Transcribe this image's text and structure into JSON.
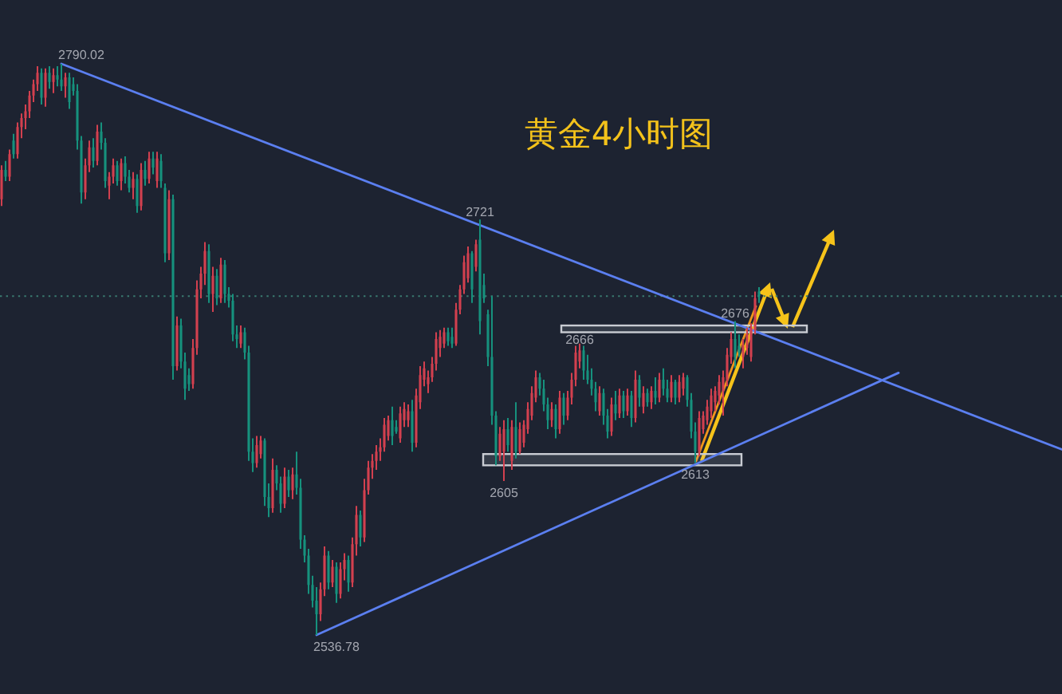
{
  "chart_data": {
    "type": "candlestick",
    "title": "黄金4小时图",
    "categories": [
      null,
      null,
      null,
      null,
      null,
      null,
      null,
      null,
      null,
      null,
      null,
      null,
      null,
      null,
      null,
      null,
      null,
      null,
      null,
      null,
      null,
      null,
      null,
      null,
      null,
      null,
      null,
      null,
      null,
      null,
      null,
      null,
      null,
      null,
      null,
      null,
      null,
      null,
      null,
      null,
      null,
      null,
      null,
      null,
      null,
      null,
      null,
      null,
      null,
      null,
      null,
      null,
      null,
      null,
      null,
      null,
      null,
      null,
      null,
      null,
      null,
      null,
      null,
      null,
      null,
      null,
      null,
      null,
      null,
      null,
      null,
      null,
      null,
      null,
      null,
      null,
      null,
      null,
      null,
      null,
      null,
      null,
      null,
      null,
      null,
      null,
      null,
      null,
      null,
      null,
      null,
      null,
      null,
      null,
      null,
      null,
      null,
      null,
      null,
      null,
      null,
      null,
      null,
      null,
      null,
      null,
      null,
      null,
      null,
      null,
      null,
      null,
      null,
      null,
      null,
      null,
      null,
      null,
      null,
      null,
      null,
      null,
      null,
      null,
      null,
      null,
      null,
      null,
      null,
      null,
      null,
      null,
      null,
      null,
      null,
      null,
      null,
      null,
      null,
      null,
      null,
      null,
      null,
      null,
      null,
      null,
      null,
      null,
      null,
      null,
      null,
      null,
      null,
      null,
      null,
      null,
      null,
      null,
      null,
      null,
      null,
      null,
      null,
      null,
      null,
      null,
      null,
      null,
      null,
      null,
      null,
      null,
      null,
      null,
      null,
      null,
      null,
      null,
      null,
      null,
      null,
      null,
      null,
      null,
      null,
      null,
      null,
      null,
      null,
      null,
      null,
      null,
      null,
      null,
      null,
      null,
      null,
      null,
      null,
      null,
      null,
      null,
      null,
      null,
      null,
      null,
      null,
      null,
      null,
      null,
      null,
      null,
      null,
      null,
      null,
      null,
      null,
      null,
      null,
      null,
      null,
      null,
      null,
      null,
      null,
      null,
      null,
      null,
      null,
      null,
      null,
      null,
      null,
      null,
      null,
      null,
      null,
      null,
      null,
      null,
      null,
      null,
      null,
      null,
      null,
      null,
      null,
      null,
      null,
      null,
      null,
      null,
      null,
      null,
      null,
      null,
      null,
      null,
      null,
      null,
      null,
      null,
      null,
      null,
      null,
      null,
      null
    ],
    "ohlc": [
      [
        2730,
        2745,
        2727,
        2743
      ],
      [
        2743,
        2747,
        2738,
        2740
      ],
      [
        2740,
        2752,
        2738,
        2750
      ],
      [
        2756,
        2759,
        2748,
        2750
      ],
      [
        2750,
        2764,
        2748,
        2762
      ],
      [
        2762,
        2768,
        2757,
        2766
      ],
      [
        2766,
        2772,
        2761,
        2769
      ],
      [
        2769,
        2778,
        2766,
        2776
      ],
      [
        2776,
        2783,
        2773,
        2781
      ],
      [
        2781,
        2789,
        2778,
        2786
      ],
      [
        2786,
        2788,
        2772,
        2775
      ],
      [
        2775,
        2788,
        2771,
        2786
      ],
      [
        2786,
        2789,
        2779,
        2782
      ],
      [
        2782,
        2788,
        2777,
        2785
      ],
      [
        2785,
        2789,
        2780,
        2783
      ],
      [
        2783,
        2790.02,
        2778,
        2780
      ],
      [
        2780,
        2786,
        2775,
        2784
      ],
      [
        2784,
        2786,
        2770,
        2773
      ],
      [
        2781,
        2784,
        2776,
        2778
      ],
      [
        2778,
        2781,
        2752,
        2756
      ],
      [
        2756,
        2758,
        2728,
        2733
      ],
      [
        2733,
        2748,
        2730,
        2745
      ],
      [
        2745,
        2756,
        2742,
        2753
      ],
      [
        2753,
        2757,
        2744,
        2747
      ],
      [
        2747,
        2763,
        2745,
        2760
      ],
      [
        2760,
        2764,
        2752,
        2755
      ],
      [
        2755,
        2757,
        2735,
        2738
      ],
      [
        2736,
        2742,
        2730,
        2740
      ],
      [
        2740,
        2748,
        2737,
        2745
      ],
      [
        2745,
        2747,
        2736,
        2738
      ],
      [
        2738,
        2748,
        2734,
        2746
      ],
      [
        2746,
        2749,
        2737,
        2740
      ],
      [
        2740,
        2743,
        2733,
        2735
      ],
      [
        2735,
        2742,
        2730,
        2739
      ],
      [
        2739,
        2741,
        2724,
        2727
      ],
      [
        2727,
        2746,
        2725,
        2743
      ],
      [
        2743,
        2747,
        2736,
        2739
      ],
      [
        2739,
        2751,
        2737,
        2748
      ],
      [
        2748,
        2751,
        2741,
        2744
      ],
      [
        2738,
        2751,
        2735,
        2748
      ],
      [
        2747,
        2750,
        2735,
        2738
      ],
      [
        2735,
        2737,
        2702,
        2706
      ],
      [
        2706,
        2734,
        2703,
        2730
      ],
      [
        2730,
        2732,
        2650,
        2656
      ],
      [
        2656,
        2678,
        2654,
        2674
      ],
      [
        2674,
        2677,
        2655,
        2658
      ],
      [
        2658,
        2662,
        2641,
        2646
      ],
      [
        2652,
        2655,
        2645,
        2648
      ],
      [
        2648,
        2668,
        2646,
        2664
      ],
      [
        2664,
        2694,
        2661,
        2690
      ],
      [
        2690,
        2700,
        2686,
        2697
      ],
      [
        2697,
        2711,
        2692,
        2707
      ],
      [
        2707,
        2710,
        2684,
        2688
      ],
      [
        2688,
        2700,
        2680,
        2696
      ],
      [
        2696,
        2699,
        2683,
        2686
      ],
      [
        2686,
        2704,
        2684,
        2701
      ],
      [
        2701,
        2703,
        2684,
        2688
      ],
      [
        2688,
        2691,
        2682,
        2685
      ],
      [
        2685,
        2688,
        2667,
        2670
      ],
      [
        2670,
        2674,
        2664,
        2668
      ],
      [
        2666,
        2674,
        2664,
        2671
      ],
      [
        2671,
        2673,
        2659,
        2662
      ],
      [
        2662,
        2665,
        2614,
        2618
      ],
      [
        2618,
        2624,
        2609,
        2613
      ],
      [
        2613,
        2625,
        2611,
        2621
      ],
      [
        2617,
        2625,
        2615,
        2623
      ],
      [
        2623,
        2624,
        2594,
        2598
      ],
      [
        2598,
        2604,
        2589,
        2593
      ],
      [
        2593,
        2615,
        2591,
        2610
      ],
      [
        2610,
        2612,
        2601,
        2604
      ],
      [
        2604,
        2607,
        2591,
        2595
      ],
      [
        2595,
        2611,
        2593,
        2607
      ],
      [
        2607,
        2610,
        2598,
        2601
      ],
      [
        2601,
        2611,
        2597,
        2608
      ],
      [
        2608,
        2618,
        2599,
        2602
      ],
      [
        2602,
        2606,
        2575,
        2579
      ],
      [
        2579,
        2581,
        2569,
        2572
      ],
      [
        2572,
        2575,
        2555,
        2559
      ],
      [
        2559,
        2563,
        2549,
        2552
      ],
      [
        2552,
        2558,
        2536.78,
        2546
      ],
      [
        2546,
        2560,
        2543,
        2557
      ],
      [
        2557,
        2576,
        2554,
        2572
      ],
      [
        2572,
        2574,
        2557,
        2560
      ],
      [
        2560,
        2570,
        2558,
        2567
      ],
      [
        2567,
        2569,
        2551,
        2555
      ],
      [
        2555,
        2569,
        2553,
        2566
      ],
      [
        2566,
        2573,
        2561,
        2570
      ],
      [
        2570,
        2572,
        2556,
        2560
      ],
      [
        2560,
        2580,
        2558,
        2577
      ],
      [
        2577,
        2594,
        2572,
        2590
      ],
      [
        2590,
        2592,
        2576,
        2580
      ],
      [
        2580,
        2606,
        2578,
        2601
      ],
      [
        2601,
        2614,
        2599,
        2611
      ],
      [
        2611,
        2617,
        2606,
        2614
      ],
      [
        2614,
        2621,
        2610,
        2618
      ],
      [
        2618,
        2624,
        2614,
        2620
      ],
      [
        2620,
        2633,
        2618,
        2630
      ],
      [
        2625,
        2634,
        2623,
        2632
      ],
      [
        2632,
        2638,
        2621,
        2625
      ],
      [
        2629,
        2632,
        2626,
        2627
      ],
      [
        2624,
        2638,
        2622,
        2635
      ],
      [
        2632,
        2640,
        2629,
        2637
      ],
      [
        2632,
        2639,
        2629,
        2636
      ],
      [
        2636,
        2641,
        2618,
        2622
      ],
      [
        2622,
        2646,
        2620,
        2643
      ],
      [
        2640,
        2656,
        2637,
        2652
      ],
      [
        2650,
        2658,
        2647,
        2655
      ],
      [
        2648,
        2654,
        2644,
        2651
      ],
      [
        2651,
        2660,
        2649,
        2657
      ],
      [
        2657,
        2671,
        2654,
        2668
      ],
      [
        2664,
        2672,
        2660,
        2669
      ],
      [
        2666,
        2673,
        2664,
        2671
      ],
      [
        2671,
        2673,
        2665,
        2667
      ],
      [
        2669,
        2673,
        2664,
        2666
      ],
      [
        2666,
        2684,
        2665,
        2681
      ],
      [
        2681,
        2692,
        2679,
        2690
      ],
      [
        2690,
        2705,
        2688,
        2702
      ],
      [
        2695,
        2709,
        2693,
        2706
      ],
      [
        2706,
        2707,
        2684,
        2690
      ],
      [
        2700,
        2712,
        2698,
        2710
      ],
      [
        2712,
        2721,
        2670,
        2676
      ],
      [
        2692,
        2697,
        2684,
        2686
      ],
      [
        2679,
        2681,
        2656,
        2660
      ],
      [
        2660,
        2687,
        2630,
        2634
      ],
      [
        2634,
        2636,
        2612,
        2616
      ],
      [
        2616,
        2629,
        2614,
        2626
      ],
      [
        2618,
        2632,
        2605,
        2628
      ],
      [
        2628,
        2633,
        2618,
        2621
      ],
      [
        2614,
        2632,
        2610,
        2629
      ],
      [
        2629,
        2640,
        2615,
        2618
      ],
      [
        2618,
        2631,
        2617,
        2628
      ],
      [
        2622,
        2632,
        2620,
        2630
      ],
      [
        2628,
        2640,
        2626,
        2637
      ],
      [
        2634,
        2647,
        2632,
        2644
      ],
      [
        2642,
        2654,
        2640,
        2651
      ],
      [
        2651,
        2653,
        2643,
        2646
      ],
      [
        2646,
        2650,
        2636,
        2639
      ],
      [
        2639,
        2642,
        2628,
        2632
      ],
      [
        2632,
        2640,
        2629,
        2637
      ],
      [
        2637,
        2639,
        2624,
        2628
      ],
      [
        2628,
        2645,
        2626,
        2642
      ],
      [
        2642,
        2644,
        2630,
        2634
      ],
      [
        2634,
        2645,
        2632,
        2642
      ],
      [
        2642,
        2653,
        2639,
        2650
      ],
      [
        2650,
        2665,
        2647,
        2662
      ],
      [
        2658,
        2666,
        2655,
        2663
      ],
      [
        2663,
        2665,
        2650,
        2654
      ],
      [
        2654,
        2661,
        2648,
        2650
      ],
      [
        2650,
        2655,
        2643,
        2646
      ],
      [
        2646,
        2649,
        2636,
        2640
      ],
      [
        2636,
        2647,
        2634,
        2644
      ],
      [
        2644,
        2646,
        2630,
        2634
      ],
      [
        2634,
        2637,
        2624,
        2627
      ],
      [
        2627,
        2642,
        2625,
        2639
      ],
      [
        2639,
        2645,
        2632,
        2635
      ],
      [
        2635,
        2646,
        2633,
        2643
      ],
      [
        2643,
        2645,
        2633,
        2636
      ],
      [
        2636,
        2646,
        2634,
        2643
      ],
      [
        2643,
        2645,
        2629,
        2633
      ],
      [
        2633,
        2654,
        2631,
        2650
      ],
      [
        2650,
        2652,
        2638,
        2642
      ],
      [
        2638,
        2647,
        2635,
        2644
      ],
      [
        2644,
        2646,
        2638,
        2640
      ],
      [
        2640,
        2647,
        2637,
        2645
      ],
      [
        2645,
        2651,
        2639,
        2642
      ],
      [
        2642,
        2653,
        2640,
        2650
      ],
      [
        2650,
        2655,
        2643,
        2646
      ],
      [
        2646,
        2650,
        2640,
        2642
      ],
      [
        2642,
        2652,
        2640,
        2649
      ],
      [
        2649,
        2650,
        2639,
        2642
      ],
      [
        2642,
        2652,
        2640,
        2649
      ],
      [
        2646,
        2653,
        2643,
        2651
      ],
      [
        2651,
        2652,
        2638,
        2641
      ],
      [
        2641,
        2644,
        2624,
        2627
      ],
      [
        2627,
        2631,
        2613,
        2618
      ],
      [
        2618,
        2636,
        2616,
        2633
      ],
      [
        2628,
        2636,
        2626,
        2634
      ],
      [
        2632,
        2641,
        2630,
        2638
      ],
      [
        2636,
        2646,
        2633,
        2643
      ],
      [
        2640,
        2647,
        2636,
        2645
      ],
      [
        2643,
        2652,
        2639,
        2649
      ],
      [
        2645,
        2654,
        2634,
        2651
      ],
      [
        2650,
        2664,
        2647,
        2661
      ],
      [
        2660,
        2671,
        2657,
        2668
      ],
      [
        2668,
        2676,
        2655,
        2660
      ],
      [
        2665,
        2670,
        2660,
        2662
      ],
      [
        2660,
        2668,
        2655,
        2665
      ],
      [
        2664,
        2673,
        2661,
        2670
      ],
      [
        2660,
        2675,
        2658,
        2673
      ],
      [
        2672,
        2689,
        2670,
        2686
      ],
      [
        2689,
        2691,
        2684,
        2687
      ],
      null,
      null,
      null,
      null,
      null,
      null,
      null,
      null,
      null,
      null,
      null,
      null,
      null,
      null,
      null,
      null,
      null,
      null,
      null,
      null,
      null,
      null,
      null,
      null,
      null,
      null,
      null,
      null,
      null,
      null,
      null,
      null,
      null,
      null,
      null,
      null,
      null,
      null,
      null,
      null,
      null,
      null,
      null,
      null,
      null,
      null,
      null,
      null,
      null,
      null,
      null,
      null,
      null,
      null,
      null,
      null,
      null,
      null,
      null,
      null,
      null,
      null,
      null,
      null,
      null,
      null,
      null,
      null,
      null,
      null,
      null,
      null,
      null,
      null,
      null,
      null
    ],
    "colors": [
      "#d2404f",
      "#16917d",
      "#d2404f",
      "#16917d",
      "#d2404f",
      "#d2404f",
      "#d2404f",
      "#d2404f",
      "#d2404f",
      "#d2404f",
      "#16917d",
      "#d2404f",
      "#16917d",
      "#d2404f",
      "#16917d",
      "#16917d",
      "#d2404f",
      "#16917d",
      "#16917d",
      "#16917d",
      "#16917d",
      "#d2404f",
      "#d2404f",
      "#16917d",
      "#d2404f",
      "#16917d",
      "#16917d",
      "#d2404f",
      "#d2404f",
      "#16917d",
      "#d2404f",
      "#16917d",
      "#16917d",
      "#d2404f",
      "#16917d",
      "#d2404f",
      "#16917d",
      "#d2404f",
      "#16917d",
      "#d2404f",
      "#16917d",
      "#16917d",
      "#d2404f",
      "#16917d",
      "#d2404f",
      "#16917d",
      "#16917d",
      "#16917d",
      "#d2404f",
      "#d2404f",
      "#d2404f",
      "#d2404f",
      "#16917d",
      "#d2404f",
      "#16917d",
      "#d2404f",
      "#16917d",
      "#16917d",
      "#16917d",
      "#16917d",
      "#d2404f",
      "#16917d",
      "#16917d",
      "#16917d",
      "#d2404f",
      "#d2404f",
      "#16917d",
      "#16917d",
      "#d2404f",
      "#16917d",
      "#16917d",
      "#d2404f",
      "#16917d",
      "#d2404f",
      "#16917d",
      "#16917d",
      "#16917d",
      "#16917d",
      "#16917d",
      "#16917d",
      "#d2404f",
      "#d2404f",
      "#16917d",
      "#d2404f",
      "#16917d",
      "#d2404f",
      "#d2404f",
      "#16917d",
      "#d2404f",
      "#d2404f",
      "#16917d",
      "#d2404f",
      "#d2404f",
      "#d2404f",
      "#d2404f",
      "#d2404f",
      "#d2404f",
      "#d2404f",
      "#16917d",
      "#16917d",
      "#d2404f",
      "#d2404f",
      "#d2404f",
      "#16917d",
      "#d2404f",
      "#d2404f",
      "#d2404f",
      "#d2404f",
      "#d2404f",
      "#d2404f",
      "#d2404f",
      "#d2404f",
      "#16917d",
      "#16917d",
      "#d2404f",
      "#d2404f",
      "#d2404f",
      "#d2404f",
      "#16917d",
      "#d2404f",
      "#16917d",
      "#16917d",
      "#16917d",
      "#16917d",
      "#16917d",
      "#d2404f",
      "#d2404f",
      "#16917d",
      "#d2404f",
      "#16917d",
      "#d2404f",
      "#d2404f",
      "#d2404f",
      "#d2404f",
      "#d2404f",
      "#16917d",
      "#16917d",
      "#16917d",
      "#d2404f",
      "#16917d",
      "#d2404f",
      "#16917d",
      "#d2404f",
      "#d2404f",
      "#d2404f",
      "#d2404f",
      "#16917d",
      "#16917d",
      "#16917d",
      "#16917d",
      "#d2404f",
      "#16917d",
      "#16917d",
      "#d2404f",
      "#16917d",
      "#d2404f",
      "#16917d",
      "#d2404f",
      "#16917d",
      "#d2404f",
      "#16917d",
      "#d2404f",
      "#16917d",
      "#d2404f",
      "#16917d",
      "#d2404f",
      "#16917d",
      "#16917d",
      "#d2404f",
      "#16917d",
      "#d2404f",
      "#d2404f",
      "#16917d",
      "#16917d",
      "#16917d",
      "#d2404f",
      "#d2404f",
      "#d2404f",
      "#d2404f",
      "#d2404f",
      "#d2404f",
      "#d2404f",
      "#d2404f",
      "#d2404f",
      "#16917d",
      "#16917d",
      "#d2404f",
      "#d2404f",
      "#d2404f",
      "#d2404f",
      "#16917d",
      null,
      null,
      null,
      null,
      null,
      null,
      null,
      null,
      null,
      null,
      null,
      null,
      null,
      null,
      null,
      null,
      null,
      null,
      null,
      null,
      null,
      null,
      null,
      null,
      null,
      null,
      null,
      null,
      null,
      null,
      null,
      null,
      null,
      null,
      null,
      null,
      null,
      null,
      null,
      null,
      null,
      null,
      null,
      null,
      null,
      null,
      null,
      null,
      null,
      null,
      null,
      null,
      null,
      null,
      null,
      null,
      null,
      null,
      null,
      null,
      null,
      null,
      null,
      null,
      null,
      null,
      null,
      null,
      null,
      null,
      null,
      null,
      null,
      null,
      null,
      null
    ],
    "series": [
      {
        "type": "line",
        "color": "#5b7ff0",
        "values": [
          null,
          null,
          null,
          null,
          null,
          null,
          null,
          null,
          null,
          null,
          null,
          null,
          null,
          null,
          null,
          2790.02,
          null,
          null,
          null,
          null,
          null,
          null,
          null,
          null,
          null,
          null,
          null,
          null,
          null,
          null,
          null,
          null,
          null,
          null,
          null,
          null,
          null,
          null,
          null,
          null,
          null,
          null,
          null,
          null,
          null,
          null,
          null,
          null,
          null,
          null,
          null,
          null,
          null,
          null,
          null,
          null,
          null,
          null,
          null,
          null,
          null,
          null,
          null,
          null,
          null,
          null,
          null,
          null,
          null,
          null,
          null,
          null,
          null,
          null,
          null,
          null,
          null,
          null,
          null,
          null,
          null,
          null,
          null,
          null,
          null,
          null,
          null,
          null,
          null,
          null,
          null,
          null,
          null,
          null,
          null,
          null,
          null,
          null,
          null,
          null,
          null,
          null,
          null,
          null,
          null,
          null,
          null,
          null,
          null,
          null,
          null,
          null,
          null,
          null,
          null,
          null,
          null,
          null,
          null,
          null,
          null,
          null,
          null,
          null,
          null,
          null,
          null,
          null,
          null,
          null,
          null,
          null,
          null,
          null,
          null,
          null,
          null,
          null,
          null,
          null,
          null,
          null,
          null,
          null,
          null,
          null,
          null,
          null,
          null,
          null,
          null,
          null,
          null,
          null,
          null,
          null,
          null,
          null,
          null,
          null,
          null,
          null,
          null,
          null,
          null,
          null,
          null,
          null,
          null,
          null,
          null,
          null,
          null,
          null,
          null,
          null,
          null,
          null,
          null,
          null,
          null,
          null,
          null,
          null,
          null,
          null,
          null,
          null,
          null,
          null,
          null,
          null,
          null,
          null,
          null,
          null,
          null,
          null,
          null,
          null,
          null,
          null,
          null,
          null,
          null,
          null,
          null,
          null,
          null,
          null,
          null,
          null,
          null,
          null,
          null,
          null,
          null,
          null,
          null,
          null,
          null,
          null,
          null,
          null,
          null,
          null,
          null,
          null,
          null,
          null,
          null,
          null,
          null,
          null,
          null,
          null,
          null,
          null,
          null,
          null,
          null,
          null,
          null,
          null,
          null,
          null,
          null,
          null,
          null,
          null,
          null,
          null,
          null,
          null,
          null,
          null,
          null,
          null,
          null,
          null,
          null,
          null,
          null,
          null,
          null,
          null,
          2619
        ]
      },
      {
        "type": "line",
        "color": "#5b7ff0",
        "values": [
          null,
          null,
          null,
          null,
          null,
          null,
          null,
          null,
          null,
          null,
          null,
          null,
          null,
          null,
          null,
          null,
          null,
          null,
          null,
          null,
          null,
          null,
          null,
          null,
          null,
          null,
          null,
          null,
          null,
          null,
          null,
          null,
          null,
          null,
          null,
          null,
          null,
          null,
          null,
          null,
          null,
          null,
          null,
          null,
          null,
          null,
          null,
          null,
          null,
          null,
          null,
          null,
          null,
          null,
          null,
          null,
          null,
          null,
          null,
          null,
          null,
          null,
          null,
          null,
          null,
          null,
          null,
          null,
          null,
          null,
          null,
          null,
          null,
          null,
          null,
          null,
          null,
          null,
          null,
          2536.78,
          null,
          null,
          null,
          null,
          null,
          null,
          null,
          null,
          null,
          null,
          null,
          null,
          null,
          null,
          null,
          null,
          null,
          null,
          null,
          null,
          null,
          null,
          null,
          null,
          null,
          null,
          null,
          null,
          null,
          null,
          null,
          null,
          null,
          null,
          null,
          null,
          null,
          null,
          null,
          null,
          null,
          null,
          null,
          null,
          null,
          null,
          null,
          null,
          null,
          null,
          null,
          null,
          null,
          null,
          null,
          null,
          null,
          null,
          null,
          null,
          null,
          null,
          null,
          null,
          null,
          null,
          null,
          null,
          null,
          null,
          null,
          null,
          null,
          null,
          null,
          null,
          null,
          null,
          null,
          null,
          null,
          null,
          null,
          null,
          null,
          null,
          null,
          null,
          null,
          null,
          null,
          null,
          null,
          null,
          null,
          null,
          null,
          null,
          null,
          null,
          null,
          null,
          null,
          null,
          null,
          null,
          null,
          null,
          null,
          null,
          null,
          null,
          null,
          null,
          null,
          null,
          null,
          null,
          null,
          null,
          null,
          null,
          null,
          null,
          null,
          null,
          null,
          null,
          null,
          null,
          null,
          null,
          null,
          null,
          null,
          null,
          null,
          null,
          null,
          null,
          null,
          null,
          null,
          null,
          null,
          2653,
          null,
          null,
          null,
          null,
          null,
          null,
          null,
          null,
          null,
          null,
          null,
          null,
          null,
          null,
          null,
          null,
          null,
          null,
          null,
          null,
          null,
          null,
          null,
          null,
          null,
          null,
          null,
          null,
          null,
          null,
          null,
          null,
          null,
          null,
          null,
          null,
          null,
          null,
          null,
          null,
          null
        ]
      }
    ],
    "bands": [
      {
        "axis": "y",
        "from": 2671,
        "to": 2674,
        "color": "#c9ccd3"
      },
      {
        "axis": "y",
        "from": 2612,
        "to": 2617,
        "color": "#c9ccd3"
      }
    ],
    "ref_lines": [
      {
        "axis": "y",
        "value": 2687,
        "color": "#3a7a70",
        "line_style": "dotted"
      }
    ],
    "annotations": [
      {
        "text": "2790.02",
        "y": 2790.02
      },
      {
        "text": "2721",
        "y": 2721
      },
      {
        "text": "2605",
        "y": 2605
      },
      {
        "text": "2666",
        "y": 2666
      },
      {
        "text": "2676",
        "y": 2676
      },
      {
        "text": "2613",
        "y": 2613
      },
      {
        "text": "2536.78",
        "y": 2536.78
      }
    ],
    "tick_labels": false
  }
}
